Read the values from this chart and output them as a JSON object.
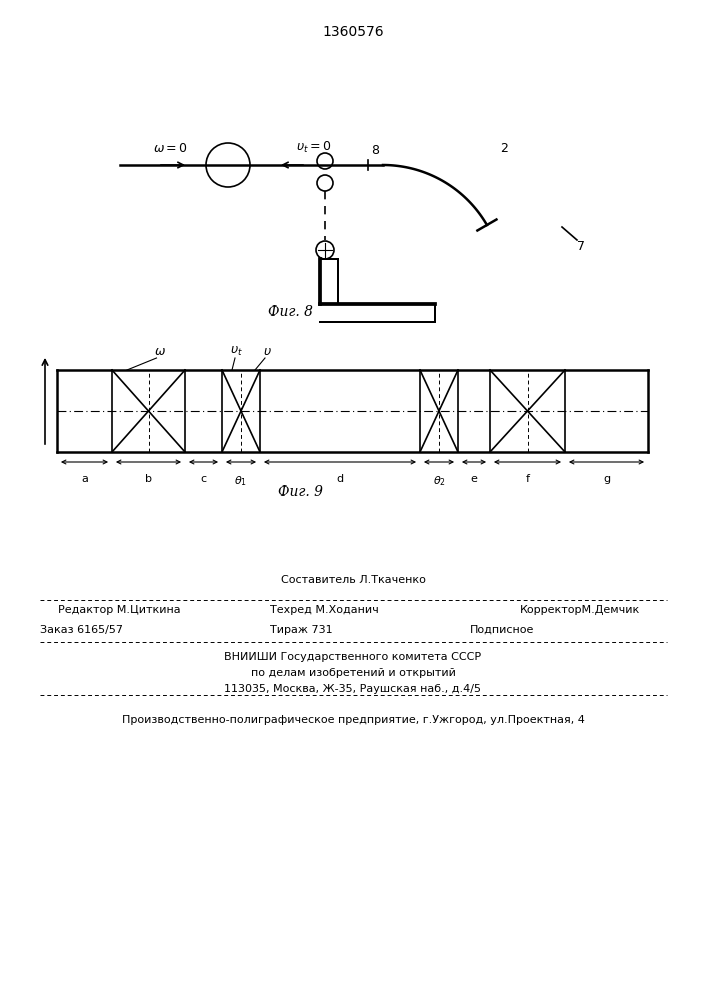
{
  "title": "1360576",
  "title_fontsize": 10,
  "fig8_caption": "Фиг. 8",
  "fig9_caption": "Фиг. 9",
  "footer_line1": "Составитель Л.Ткаченко",
  "footer_line2_left": "Редактор М.Циткина",
  "footer_line2_mid": "Техред М.Ходанич",
  "footer_line2_right": "КорректорМ.Демчик",
  "footer_line3_left": "Заказ 6165/57",
  "footer_line3_mid": "Тираж 731",
  "footer_line3_right": "Подписное",
  "footer_line4": "ВНИИШИ Государственного комитета СССР",
  "footer_line5": "по делам изобретений и открытий",
  "footer_line6": "113035, Москва, Ж-35, Раушская наб., д.4/5",
  "footer_line7": "Производственно-полиграфическое предприятие, г.Ужгород, ул.Проектная, 4",
  "bg_color": "#ffffff"
}
